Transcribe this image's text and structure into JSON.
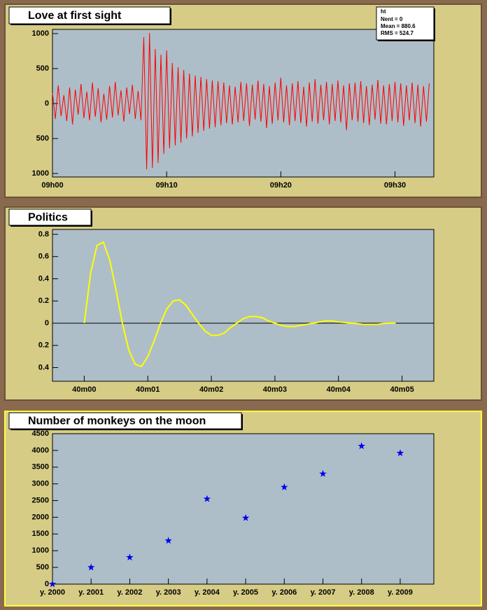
{
  "chart_data": [
    {
      "type": "line",
      "title": "Love at first sight",
      "stats": {
        "name": "ht",
        "lines": [
          "Nent = 0",
          "Mean = 880.6",
          "RMS = 524.7"
        ]
      },
      "color": "#ff0000",
      "x": [
        0,
        0.25,
        0.5,
        0.75,
        1,
        1.25,
        1.5,
        1.75,
        2,
        2.25,
        2.5,
        2.75,
        3,
        3.25,
        3.5,
        3.75,
        4,
        4.25,
        4.5,
        4.75,
        5,
        5.25,
        5.5,
        5.75,
        6,
        6.25,
        6.5,
        6.75,
        7,
        7.25,
        7.5,
        7.75,
        8,
        8.25,
        8.5,
        8.75,
        9,
        9.25,
        9.5,
        9.75,
        10,
        10.25,
        10.5,
        10.75,
        11,
        11.25,
        11.5,
        11.75,
        12,
        12.25,
        12.5,
        12.75,
        13,
        13.25,
        13.5,
        13.75,
        14,
        14.25,
        14.5,
        14.75,
        15,
        15.25,
        15.5,
        15.75,
        16,
        16.25,
        16.5,
        16.75,
        17,
        17.25,
        17.5,
        17.75,
        18,
        18.25,
        18.5,
        18.75,
        19,
        19.25,
        19.5,
        19.75,
        20,
        20.25,
        20.5,
        20.75,
        21,
        21.25,
        21.5,
        21.75,
        22,
        22.25,
        22.5,
        22.75,
        23,
        23.25,
        23.5,
        23.75,
        24,
        24.25,
        24.5,
        24.75,
        25,
        25.25,
        25.5,
        25.75,
        26,
        26.25,
        26.5,
        26.75,
        27,
        27.25,
        27.5,
        27.75,
        28,
        28.25,
        28.5,
        28.75,
        29,
        29.25,
        29.5,
        29.75,
        30,
        30.25,
        30.5,
        30.75,
        31,
        31.25,
        31.5,
        31.75,
        32,
        32.25,
        32.5,
        32.75,
        33
      ],
      "values": [
        150,
        -220,
        260,
        -180,
        120,
        -250,
        230,
        -300,
        200,
        -160,
        280,
        -210,
        170,
        -240,
        300,
        -190,
        220,
        -270,
        140,
        -230,
        250,
        -200,
        310,
        -170,
        190,
        -260,
        230,
        -150,
        270,
        -220,
        180,
        -240,
        950,
        -940,
        1010,
        -920,
        780,
        -850,
        700,
        -720,
        760,
        -640,
        580,
        -600,
        520,
        -560,
        480,
        -500,
        430,
        -470,
        400,
        -420,
        380,
        -390,
        350,
        -360,
        330,
        -340,
        320,
        -310,
        300,
        -280,
        260,
        -300,
        240,
        -270,
        310,
        -250,
        290,
        -320,
        270,
        -230,
        330,
        -260,
        280,
        -350,
        250,
        -290,
        300,
        -240,
        370,
        -270,
        260,
        -310,
        290,
        -250,
        320,
        -280,
        240,
        -330,
        300,
        -260,
        350,
        -290,
        270,
        -240,
        310,
        -300,
        280,
        -250,
        330,
        -270,
        260,
        -380,
        290,
        -240,
        300,
        -260,
        320,
        -280,
        250,
        -310,
        270,
        -230,
        340,
        -290,
        260,
        -300,
        280,
        -250,
        310,
        -270,
        290,
        -320,
        260,
        -240,
        300,
        -280,
        270,
        -330,
        250,
        -260,
        290
      ],
      "xlim": [
        0,
        33.4
      ],
      "ylim": [
        -1050,
        1060
      ],
      "xticks": [
        {
          "value": 0,
          "label": "09h00"
        },
        {
          "value": 10,
          "label": "09h10"
        },
        {
          "value": 20,
          "label": "09h20"
        },
        {
          "value": 30,
          "label": "09h30"
        }
      ],
      "yticks": [
        {
          "value": -1000,
          "label": "1000"
        },
        {
          "value": -500,
          "label": "500"
        },
        0,
        500,
        1000
      ]
    },
    {
      "type": "line",
      "title": "Politics",
      "color": "#ffff00",
      "x": [
        0,
        0.1,
        0.2,
        0.3,
        0.4,
        0.5,
        0.6,
        0.7,
        0.8,
        0.9,
        1,
        1.1,
        1.2,
        1.3,
        1.4,
        1.5,
        1.6,
        1.7,
        1.8,
        1.9,
        2,
        2.1,
        2.2,
        2.3,
        2.4,
        2.5,
        2.6,
        2.7,
        2.8,
        2.9,
        3,
        3.1,
        3.2,
        3.3,
        3.4,
        3.5,
        3.6,
        3.7,
        3.8,
        3.9,
        4,
        4.1,
        4.2,
        4.3,
        4.4,
        4.5,
        4.6,
        4.7,
        4.8,
        4.9
      ],
      "values": [
        0,
        0.45,
        0.7,
        0.73,
        0.57,
        0.3,
        0,
        -0.24,
        -0.37,
        -0.39,
        -0.3,
        -0.16,
        0,
        0.13,
        0.2,
        0.21,
        0.16,
        0.08,
        0,
        -0.07,
        -0.11,
        -0.11,
        -0.09,
        -0.04,
        0,
        0.04,
        0.06,
        0.06,
        0.05,
        0.02,
        0,
        -0.02,
        -0.03,
        -0.03,
        -0.02,
        -0.01,
        0,
        0.01,
        0.02,
        0.02,
        0.01,
        0.006,
        0,
        -0.005,
        -0.01,
        -0.01,
        -0.01,
        -0.004,
        0,
        0
      ],
      "xlim": [
        -0.5,
        5.5
      ],
      "ylim": [
        -0.523,
        0.844
      ],
      "xticks": [
        {
          "value": 0,
          "label": "40m00"
        },
        {
          "value": 1,
          "label": "40m01"
        },
        {
          "value": 2,
          "label": "40m02"
        },
        {
          "value": 3,
          "label": "40m03"
        },
        {
          "value": 4,
          "label": "40m04"
        },
        {
          "value": 5,
          "label": "40m05"
        }
      ],
      "yticks": [
        {
          "value": -0.4,
          "label": "0.4"
        },
        {
          "value": -0.2,
          "label": "0.2"
        },
        0,
        0.2,
        0.4,
        0.6,
        0.8
      ]
    },
    {
      "type": "scatter",
      "title": "Number of monkeys on the moon",
      "color": "#0000ee",
      "x": [
        2000,
        2001,
        2002,
        2003,
        2004,
        2005,
        2006,
        2007,
        2008,
        2009
      ],
      "values": [
        0,
        500,
        800,
        1300,
        2550,
        1980,
        2900,
        3300,
        4130,
        3920
      ],
      "xlim": [
        2000,
        2009.87
      ],
      "ylim": [
        0,
        4500
      ],
      "xticks": [
        {
          "value": 2000,
          "label": "y. 2000"
        },
        {
          "value": 2001,
          "label": "y. 2001"
        },
        {
          "value": 2002,
          "label": "y. 2002"
        },
        {
          "value": 2003,
          "label": "y. 2003"
        },
        {
          "value": 2004,
          "label": "y. 2004"
        },
        {
          "value": 2005,
          "label": "y. 2005"
        },
        {
          "value": 2006,
          "label": "y. 2006"
        },
        {
          "value": 2007,
          "label": "y. 2007"
        },
        {
          "value": 2008,
          "label": "y. 2008"
        },
        {
          "value": 2009,
          "label": "y. 2009"
        }
      ],
      "yticks": [
        0,
        500,
        1000,
        1500,
        2000,
        2500,
        3000,
        3500,
        4000,
        4500
      ]
    }
  ]
}
